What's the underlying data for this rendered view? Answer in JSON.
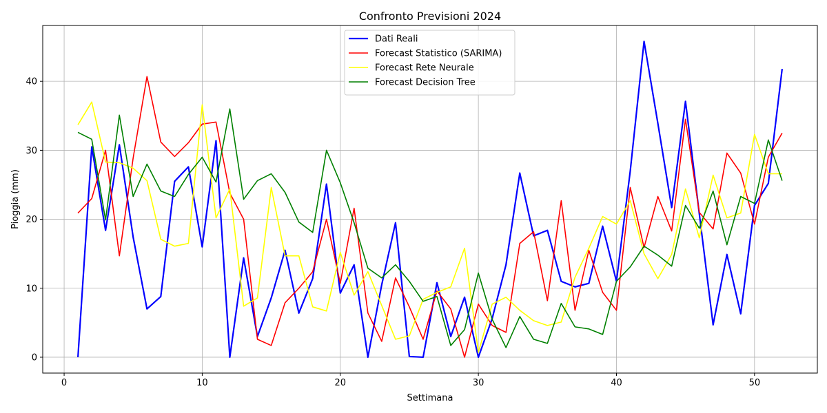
{
  "chart_data": {
    "type": "line",
    "title": "Confronto Previsioni 2024",
    "xlabel": "Settimana",
    "ylabel": "Pioggia (mm)",
    "xlim": [
      -1.55,
      54.55
    ],
    "ylim": [
      -2.3,
      48.1
    ],
    "xticks": [
      0,
      10,
      20,
      30,
      40,
      50
    ],
    "yticks": [
      0,
      10,
      20,
      30,
      40
    ],
    "grid": true,
    "legend_position": "top-center",
    "x": [
      1,
      2,
      3,
      4,
      5,
      6,
      7,
      8,
      9,
      10,
      11,
      12,
      13,
      14,
      15,
      16,
      17,
      18,
      19,
      20,
      21,
      22,
      23,
      24,
      25,
      26,
      27,
      28,
      29,
      30,
      31,
      32,
      33,
      34,
      35,
      36,
      37,
      38,
      39,
      40,
      41,
      42,
      43,
      44,
      45,
      46,
      47,
      48,
      49,
      50,
      51,
      52
    ],
    "series": [
      {
        "name": "Dati Reali",
        "color": "#0000ff",
        "width": 2.2,
        "values": [
          0,
          30.5,
          18.4,
          30.8,
          17.4,
          7.0,
          8.8,
          25.5,
          27.6,
          16.0,
          31.4,
          0,
          14.4,
          3.0,
          8.6,
          15.5,
          6.4,
          11.4,
          25.1,
          9.3,
          13.4,
          0,
          10.5,
          19.5,
          0.1,
          0,
          10.8,
          3.0,
          8.7,
          0,
          5.6,
          13.4,
          26.7,
          17.6,
          18.4,
          11.0,
          10.2,
          10.7,
          19.0,
          11.0,
          27.0,
          45.8,
          33.9,
          21.7,
          37.1,
          20.8,
          4.7,
          14.9,
          6.3,
          22.0,
          25.2,
          41.8
        ]
      },
      {
        "name": "Forecast Statistico (SARIMA)",
        "color": "#ff0000",
        "width": 1.6,
        "values": [
          20.9,
          23.0,
          30.0,
          14.7,
          28.9,
          40.7,
          31.2,
          29.1,
          31.1,
          33.8,
          34.1,
          23.8,
          20.0,
          2.6,
          1.7,
          7.9,
          10.0,
          12.4,
          20.0,
          10.7,
          21.6,
          6.4,
          2.3,
          11.5,
          7.3,
          2.6,
          9.6,
          7.0,
          0,
          7.7,
          4.6,
          3.6,
          16.5,
          18.2,
          8.2,
          22.7,
          6.8,
          15.5,
          9.4,
          6.8,
          24.6,
          15.9,
          23.3,
          18.3,
          34.5,
          21.0,
          18.6,
          29.6,
          26.7,
          19.3,
          29.0,
          32.5
        ]
      },
      {
        "name": "Forecast Rete Neurale",
        "color": "#ffff00",
        "width": 1.6,
        "values": [
          33.7,
          37.0,
          28.3,
          28.2,
          27.4,
          25.6,
          17.1,
          16.1,
          16.5,
          36.6,
          20.2,
          24.4,
          7.4,
          8.6,
          24.6,
          14.7,
          14.7,
          7.3,
          6.7,
          15.2,
          9.0,
          12.4,
          7.5,
          2.6,
          3.1,
          8.4,
          9.4,
          10.2,
          15.8,
          0.7,
          7.7,
          8.7,
          6.8,
          5.3,
          4.6,
          5.1,
          11.6,
          15.8,
          20.4,
          19.3,
          22.7,
          15.0,
          11.4,
          14.9,
          24.4,
          17.3,
          26.4,
          20.2,
          20.9,
          32.3,
          26.6,
          26.6
        ]
      },
      {
        "name": "Forecast Decision Tree",
        "color": "#008000",
        "width": 1.6,
        "values": [
          32.6,
          31.6,
          19.9,
          35.1,
          23.3,
          28.0,
          24.1,
          23.3,
          26.5,
          29.0,
          25.4,
          36.0,
          22.9,
          25.6,
          26.6,
          23.9,
          19.6,
          18.1,
          30.0,
          25.3,
          19.5,
          12.9,
          11.5,
          13.4,
          11.0,
          8.1,
          8.8,
          1.7,
          4.0,
          12.2,
          5.5,
          1.4,
          5.9,
          2.6,
          2.0,
          7.8,
          4.4,
          4.1,
          3.3,
          11.0,
          13.1,
          16.1,
          14.8,
          13.2,
          22.0,
          18.7,
          24.1,
          16.3,
          23.3,
          22.3,
          31.5,
          25.6
        ]
      }
    ]
  }
}
